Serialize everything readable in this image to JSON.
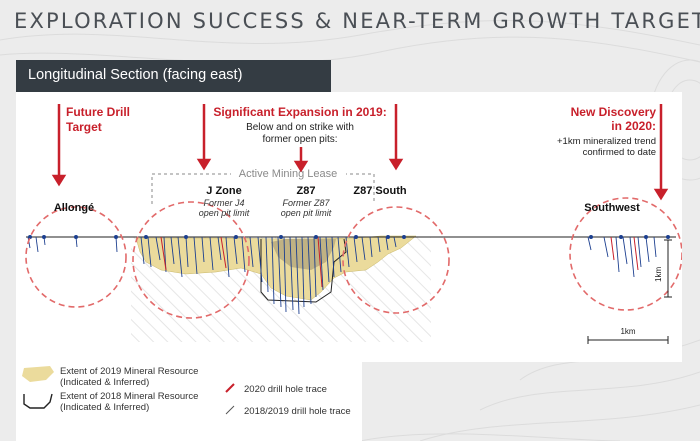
{
  "title": "EXPLORATION SUCCESS & NEAR-TERM GROWTH TARGETS",
  "section": "Longitudinal Section (facing east)",
  "callouts": {
    "future_drill": [
      "Future Drill",
      "Target"
    ],
    "significant_expansion": {
      "heading": "Significant Expansion in 2019:",
      "sub": [
        "Below and on strike with",
        "former open pits:"
      ]
    },
    "new_discovery": {
      "heading": [
        "New Discovery",
        "in 2020:"
      ],
      "sub": [
        "+1km mineralized trend",
        "confirmed to date"
      ]
    }
  },
  "labels": {
    "active_mining_lease": "Active Mining Lease",
    "allonge": "Allongé",
    "j_zone": "J Zone",
    "j4_limit": [
      "Former J4",
      "open pit limit"
    ],
    "z87": "Z87",
    "z87_limit": [
      "Former Z87",
      "open pit limit"
    ],
    "z87_south": "Z87 South",
    "southwest": "Southwest",
    "scale_vertical": "1km",
    "scale_horizontal": "1km"
  },
  "legend": {
    "resource_2019": [
      "Extent of 2019 Mineral Resource",
      "(Indicated & Inferred)"
    ],
    "resource_2018": [
      "Extent of 2018 Mineral Resource",
      "(Indicated & Inferred)"
    ],
    "trace_2020": "2020 drill hole trace",
    "trace_2018_2019": "2018/2019 drill hole trace"
  },
  "colors": {
    "accent_red": "#c8202b",
    "resource_fill": "#ebdb9c",
    "drill_blue": "#1c3f8f",
    "banner": "#343c43",
    "title": "#4a4f55"
  }
}
